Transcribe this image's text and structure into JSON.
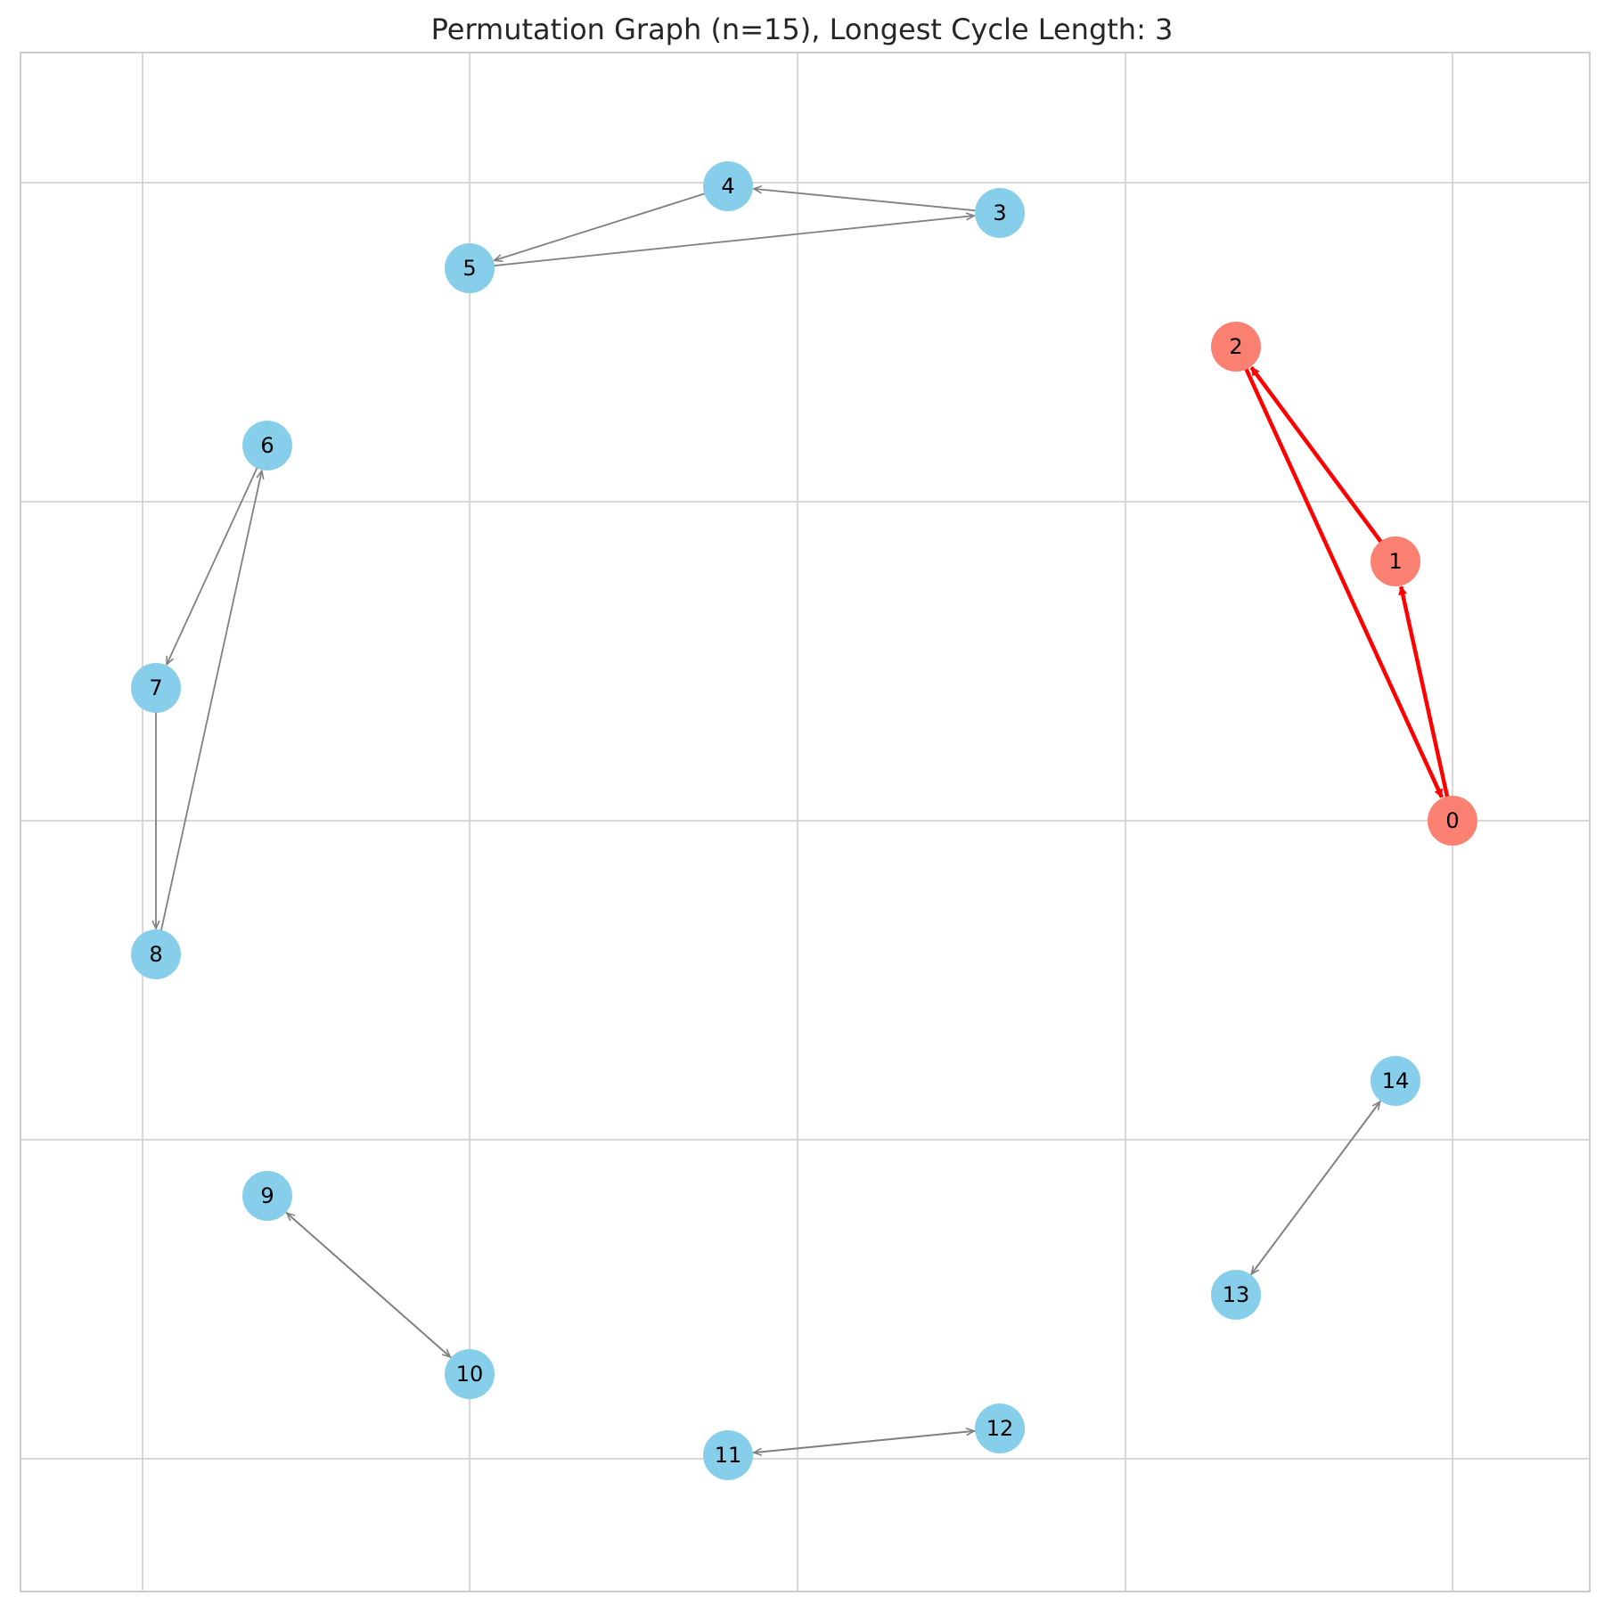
{
  "title": "Permutation Graph (n=15), Longest Cycle Length: 3",
  "colors": {
    "cycle_node": "#fa8072",
    "node": "#87ceeb",
    "cycle_edge": "#ff0000",
    "edge": "#808080",
    "grid": "#cccccc",
    "frame": "#cccccc"
  },
  "nodes": [
    {
      "id": 0,
      "label": "0",
      "in_longest_cycle": true
    },
    {
      "id": 1,
      "label": "1",
      "in_longest_cycle": true
    },
    {
      "id": 2,
      "label": "2",
      "in_longest_cycle": true
    },
    {
      "id": 3,
      "label": "3",
      "in_longest_cycle": false
    },
    {
      "id": 4,
      "label": "4",
      "in_longest_cycle": false
    },
    {
      "id": 5,
      "label": "5",
      "in_longest_cycle": false
    },
    {
      "id": 6,
      "label": "6",
      "in_longest_cycle": false
    },
    {
      "id": 7,
      "label": "7",
      "in_longest_cycle": false
    },
    {
      "id": 8,
      "label": "8",
      "in_longest_cycle": false
    },
    {
      "id": 9,
      "label": "9",
      "in_longest_cycle": false
    },
    {
      "id": 10,
      "label": "10",
      "in_longest_cycle": false
    },
    {
      "id": 11,
      "label": "11",
      "in_longest_cycle": false
    },
    {
      "id": 12,
      "label": "12",
      "in_longest_cycle": false
    },
    {
      "id": 13,
      "label": "13",
      "in_longest_cycle": false
    },
    {
      "id": 14,
      "label": "14",
      "in_longest_cycle": false
    }
  ],
  "edges": [
    {
      "from": 0,
      "to": 1,
      "in_longest_cycle": true
    },
    {
      "from": 1,
      "to": 2,
      "in_longest_cycle": true
    },
    {
      "from": 2,
      "to": 0,
      "in_longest_cycle": true
    },
    {
      "from": 3,
      "to": 4,
      "in_longest_cycle": false
    },
    {
      "from": 4,
      "to": 5,
      "in_longest_cycle": false
    },
    {
      "from": 5,
      "to": 3,
      "in_longest_cycle": false
    },
    {
      "from": 6,
      "to": 7,
      "in_longest_cycle": false
    },
    {
      "from": 7,
      "to": 8,
      "in_longest_cycle": false
    },
    {
      "from": 8,
      "to": 6,
      "in_longest_cycle": false
    },
    {
      "from": 9,
      "to": 10,
      "in_longest_cycle": false
    },
    {
      "from": 10,
      "to": 9,
      "in_longest_cycle": false
    },
    {
      "from": 11,
      "to": 12,
      "in_longest_cycle": false
    },
    {
      "from": 12,
      "to": 11,
      "in_longest_cycle": false
    },
    {
      "from": 13,
      "to": 14,
      "in_longest_cycle": false
    },
    {
      "from": 14,
      "to": 13,
      "in_longest_cycle": false
    }
  ]
}
